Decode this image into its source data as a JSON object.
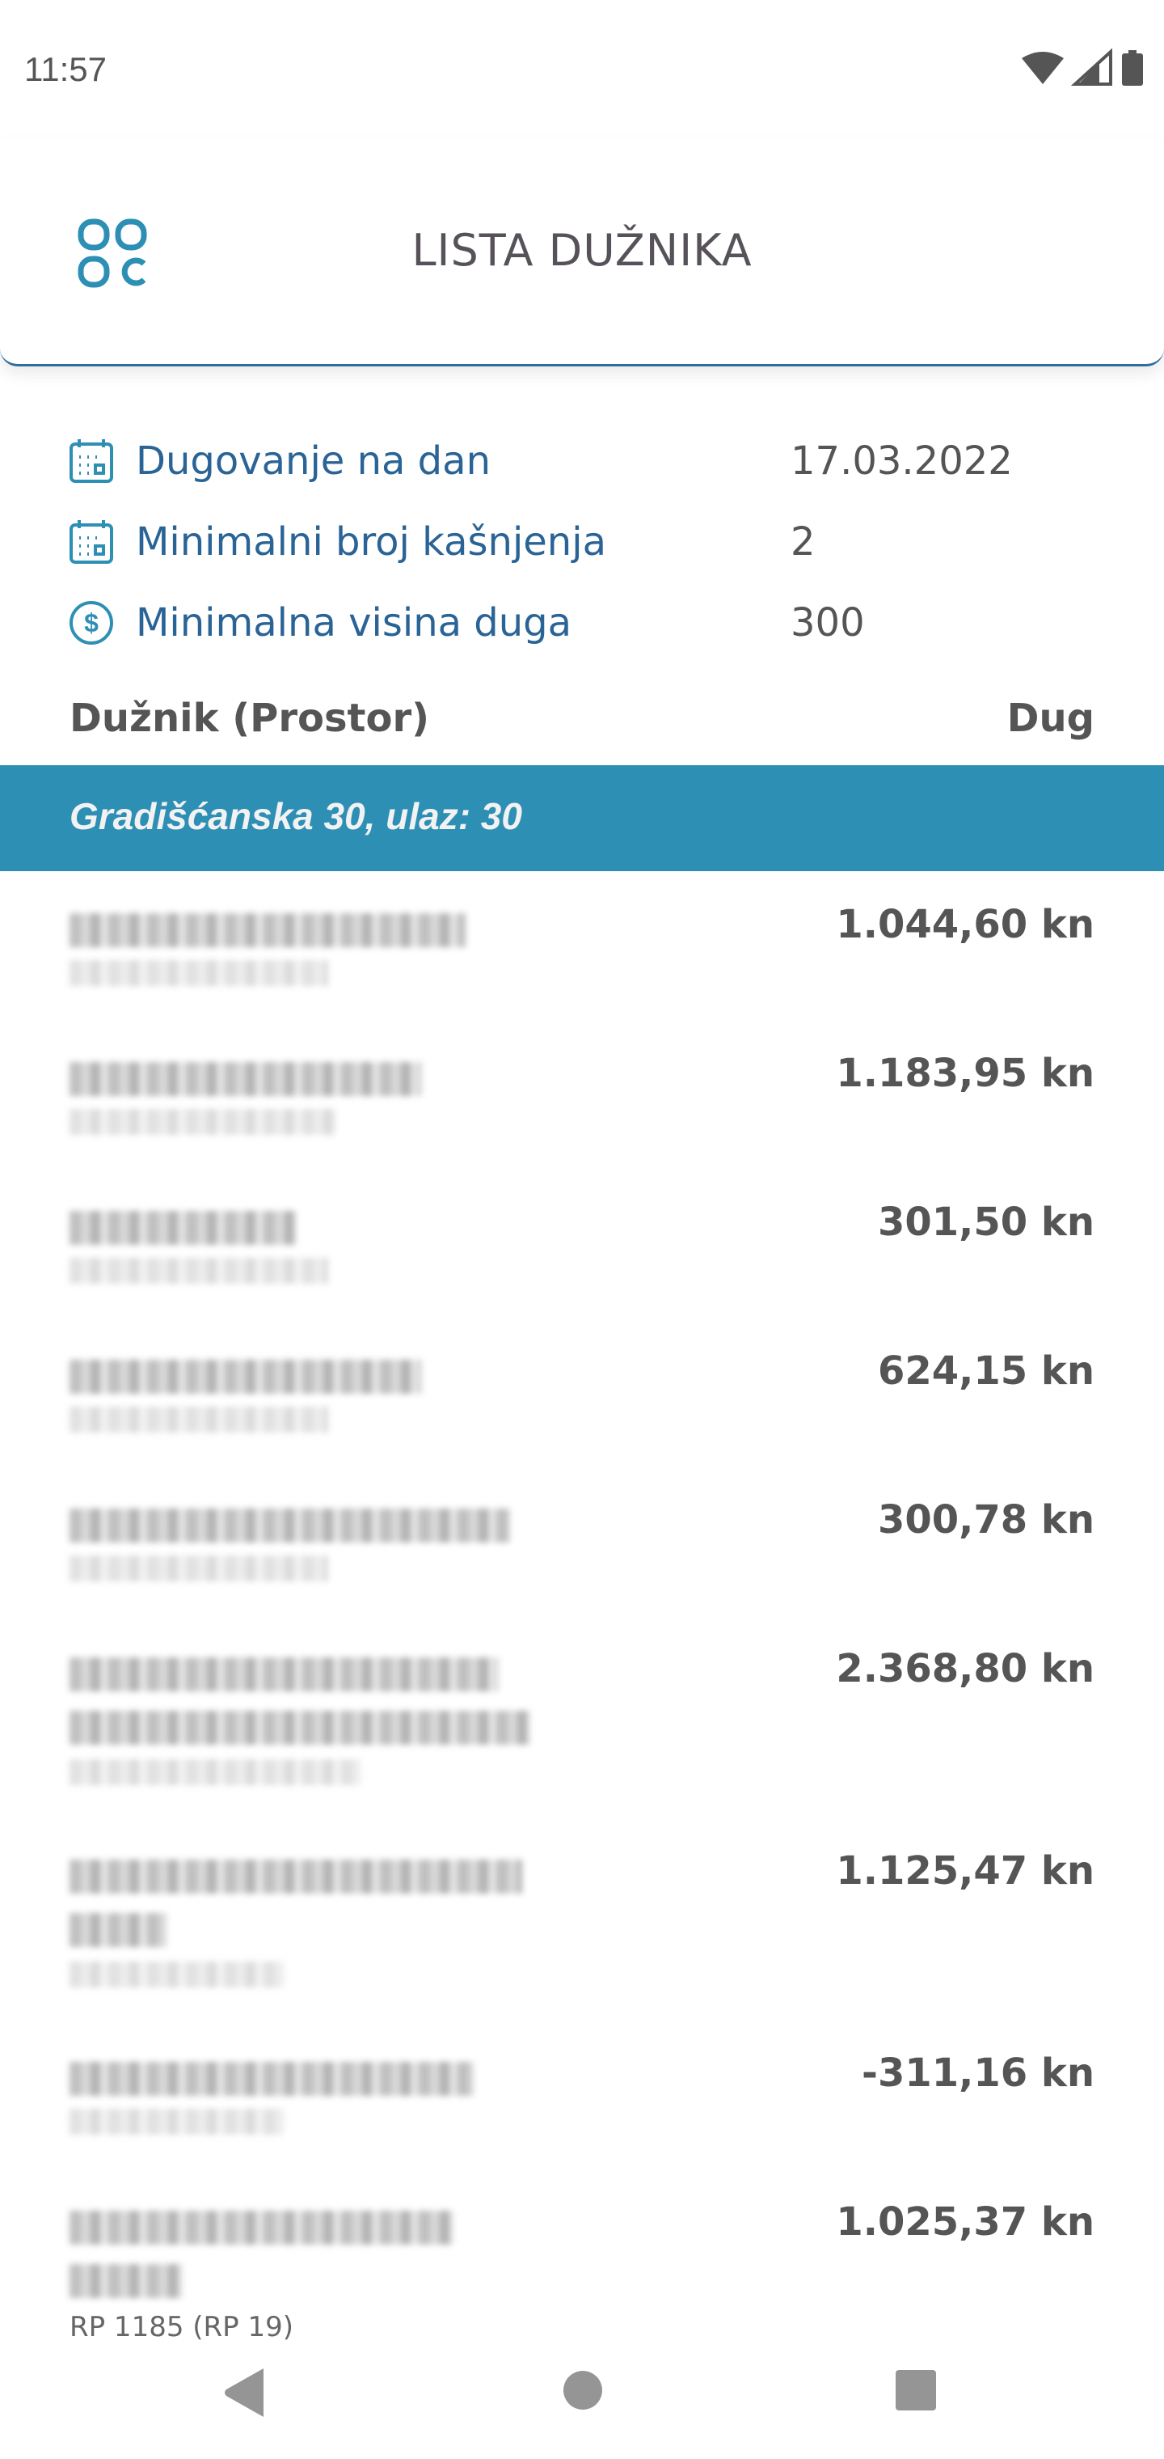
{
  "status_bar": {
    "time": "11:57",
    "icons": [
      "wifi-icon",
      "signal-icon",
      "battery-icon"
    ]
  },
  "header": {
    "title": "LISTA DUŽNIKA",
    "menu_icon": "grid-menu-icon"
  },
  "filters": [
    {
      "icon": "calendar-icon",
      "label": "Dugovanje na dan",
      "value": "17.03.2022"
    },
    {
      "icon": "calendar-icon",
      "label": "Minimalni broj kašnjenja",
      "value": "2"
    },
    {
      "icon": "dollar-circle-icon",
      "label": "Minimalna visina duga",
      "value": "300"
    }
  ],
  "columns": {
    "debtor": "Dužnik (Prostor)",
    "debt": "Dug"
  },
  "group": {
    "title": "Gradišćanska 30, ulaz: 30"
  },
  "rows": [
    {
      "amount": "1.044,60 kn"
    },
    {
      "amount": "1.183,95 kn"
    },
    {
      "amount": "301,50 kn"
    },
    {
      "amount": "624,15 kn"
    },
    {
      "amount": "300,78 kn"
    },
    {
      "amount": "2.368,80 kn"
    },
    {
      "amount": "1.125,47 kn"
    },
    {
      "amount": "-311,16 kn"
    },
    {
      "amount": "1.025,37 kn",
      "sub": "RP 1185 (RP 19)"
    }
  ],
  "colors": {
    "accent": "#2e8fb5",
    "label_blue": "#2a6496"
  }
}
